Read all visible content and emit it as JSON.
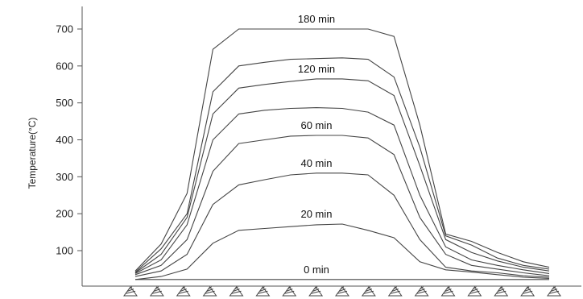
{
  "chart_data": {
    "type": "line",
    "ylabel": "Temperature(°C)",
    "xlabel": "",
    "ylim": [
      20,
      740
    ],
    "yticks": [
      100,
      200,
      300,
      400,
      500,
      600,
      700
    ],
    "grid": false,
    "legend": "none",
    "x": [
      1,
      2,
      3,
      4,
      5,
      6,
      7,
      8,
      9,
      10,
      11,
      12,
      13,
      14,
      15,
      16,
      17
    ],
    "series": [
      {
        "name": "0 min",
        "label_at": 9,
        "values": [
          22,
          22,
          22,
          22,
          22,
          22,
          22,
          22,
          22,
          22,
          22,
          22,
          22,
          22,
          22,
          22,
          22
        ]
      },
      {
        "name": "20 min",
        "label_at": 9,
        "values": [
          22,
          30,
          50,
          120,
          155,
          160,
          165,
          170,
          172,
          155,
          135,
          70,
          48,
          42,
          35,
          28,
          25
        ]
      },
      {
        "name": "40 min",
        "label_at": 9,
        "values": [
          30,
          45,
          90,
          225,
          278,
          292,
          305,
          310,
          310,
          305,
          250,
          130,
          55,
          45,
          40,
          32,
          28
        ]
      },
      {
        "name": "60 min",
        "label_at": 9,
        "values": [
          35,
          60,
          130,
          315,
          390,
          400,
          410,
          412,
          412,
          405,
          360,
          190,
          90,
          60,
          50,
          40,
          32
        ]
      },
      {
        "name": "",
        "label_at": 9,
        "values": [
          38,
          75,
          170,
          400,
          470,
          480,
          485,
          487,
          485,
          475,
          440,
          250,
          110,
          75,
          60,
          48,
          38
        ]
      },
      {
        "name": "120 min",
        "label_at": 9,
        "values": [
          40,
          90,
          190,
          470,
          540,
          550,
          558,
          565,
          565,
          560,
          520,
          330,
          130,
          95,
          72,
          55,
          45
        ]
      },
      {
        "name": "",
        "label_at": 9,
        "values": [
          42,
          105,
          200,
          530,
          600,
          610,
          618,
          620,
          622,
          618,
          570,
          380,
          140,
          115,
          80,
          60,
          50
        ]
      },
      {
        "name": "180 min",
        "label_at": 9,
        "values": [
          45,
          118,
          255,
          645,
          700,
          700,
          700,
          700,
          700,
          700,
          680,
          440,
          145,
          125,
          95,
          70,
          55
        ]
      }
    ],
    "supports": 17
  }
}
